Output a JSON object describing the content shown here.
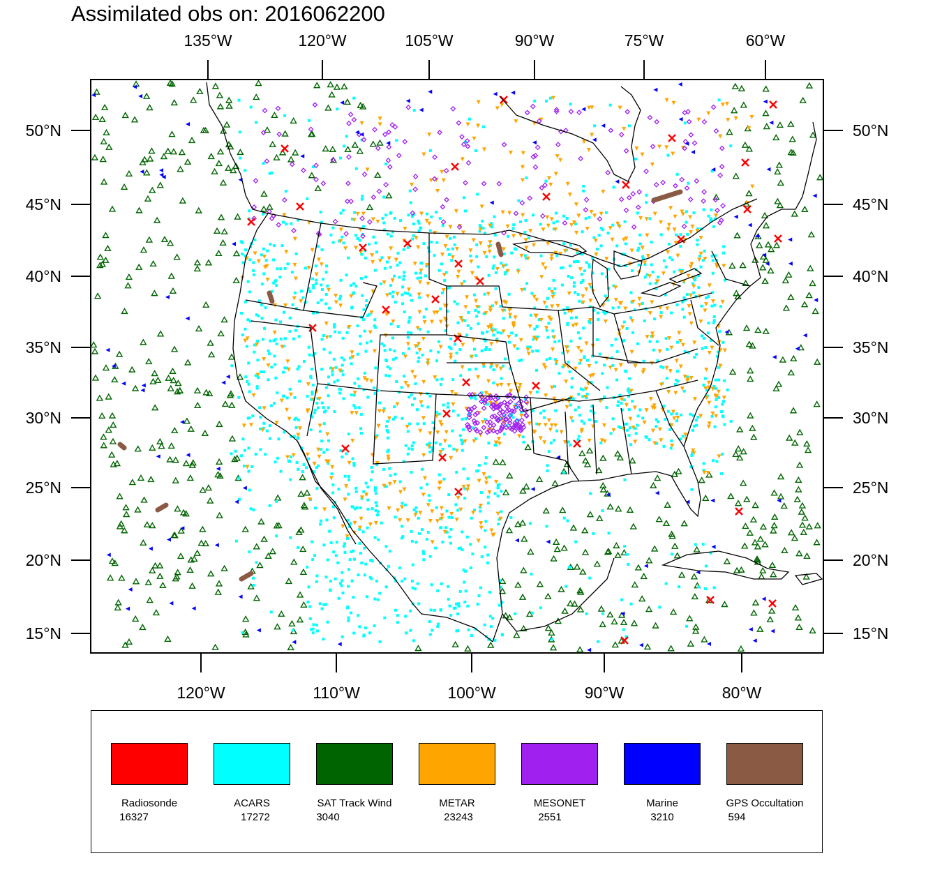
{
  "title": "Assimilated obs on: 2016062200",
  "map": {
    "top_lon_labels": [
      "135°W",
      "120°W",
      "105°W",
      "90°W",
      "75°W",
      "60°W"
    ],
    "bottom_lon_labels": [
      "120°W",
      "110°W",
      "100°W",
      "90°W",
      "80°W"
    ],
    "lat_labels": [
      "50°N",
      "45°N",
      "40°N",
      "35°N",
      "30°N",
      "25°N",
      "20°N",
      "15°N"
    ]
  },
  "legend": {
    "items": [
      {
        "name": "Radiosonde",
        "count": "16327",
        "color": "#ff0000"
      },
      {
        "name": "ACARS",
        "count": "17272",
        "color": "#00ffff"
      },
      {
        "name": "SAT Track Wind",
        "count": "3040",
        "color": "#006400"
      },
      {
        "name": "METAR",
        "count": "23243",
        "color": "#ffa500"
      },
      {
        "name": "MESONET",
        "count": "2551",
        "color": "#a020f0"
      },
      {
        "name": "Marine",
        "count": "3210",
        "color": "#0000ff"
      },
      {
        "name": "GPS Occultation",
        "count": "594",
        "color": "#8b5a45"
      }
    ]
  }
}
